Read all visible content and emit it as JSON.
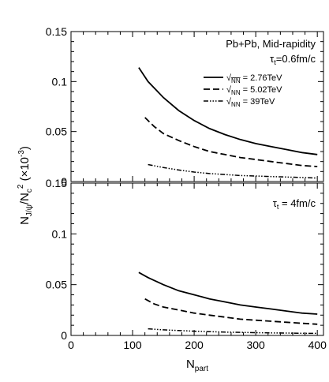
{
  "chart_data": [
    {
      "type": "line",
      "panel": "top",
      "annotation_lines": [
        "Pb+Pb, Mid-rapidity"
      ],
      "tau": {
        "symbol": "τ",
        "sub": "t",
        "value": "=0.6fm/c"
      },
      "xlim": [
        0,
        410
      ],
      "ylim": [
        0,
        0.15
      ],
      "yticks": [
        "0",
        "0.05",
        "0.1",
        "0.15"
      ],
      "legend_position": "top-right",
      "grid": false,
      "series": [
        {
          "name": "√sNN = 2.76TeV",
          "legend_prefix": "√",
          "legend_sub": "NN",
          "legend_value": " = 2.76TeV",
          "dash": "solid",
          "x": [
            110,
            125,
            150,
            175,
            200,
            225,
            250,
            275,
            300,
            325,
            350,
            375,
            400
          ],
          "y": [
            0.114,
            0.1,
            0.084,
            0.071,
            0.061,
            0.053,
            0.047,
            0.042,
            0.038,
            0.035,
            0.032,
            0.029,
            0.027
          ]
        },
        {
          "name": "√sNN = 5.02TeV",
          "legend_prefix": "√",
          "legend_sub": "NN",
          "legend_value": " = 5.02TeV",
          "dash": "dash",
          "x": [
            120,
            135,
            150,
            175,
            200,
            225,
            250,
            275,
            300,
            325,
            350,
            375,
            400
          ],
          "y": [
            0.064,
            0.055,
            0.048,
            0.041,
            0.035,
            0.03,
            0.027,
            0.024,
            0.022,
            0.02,
            0.018,
            0.016,
            0.015
          ]
        },
        {
          "name": "√sNN = 39TeV",
          "legend_prefix": "√",
          "legend_sub": "NN",
          "legend_value": " = 39TeV",
          "dash": "dashdot",
          "x": [
            125,
            150,
            175,
            200,
            225,
            250,
            275,
            300,
            325,
            350,
            375,
            400
          ],
          "y": [
            0.017,
            0.014,
            0.0115,
            0.0095,
            0.008,
            0.007,
            0.006,
            0.0055,
            0.005,
            0.0045,
            0.004,
            0.0035
          ]
        }
      ]
    },
    {
      "type": "line",
      "panel": "bottom",
      "tau": {
        "symbol": "τ",
        "sub": "t",
        "value": " = 4fm/c"
      },
      "xlim": [
        0,
        410
      ],
      "ylim": [
        0,
        0.15
      ],
      "yticks": [
        "0",
        "0.05",
        "0.1",
        "0.15"
      ],
      "xticks": [
        "0",
        "100",
        "200",
        "300",
        "400"
      ],
      "grid": false,
      "series": [
        {
          "name": "√sNN = 2.76TeV",
          "dash": "solid",
          "x": [
            110,
            125,
            150,
            175,
            200,
            225,
            250,
            275,
            300,
            325,
            350,
            375,
            400
          ],
          "y": [
            0.062,
            0.057,
            0.05,
            0.044,
            0.04,
            0.036,
            0.033,
            0.03,
            0.028,
            0.026,
            0.024,
            0.022,
            0.021
          ]
        },
        {
          "name": "√sNN = 5.02TeV",
          "dash": "dash",
          "x": [
            120,
            135,
            150,
            175,
            200,
            225,
            250,
            275,
            300,
            325,
            350,
            375,
            400
          ],
          "y": [
            0.036,
            0.031,
            0.028,
            0.025,
            0.022,
            0.02,
            0.018,
            0.016,
            0.015,
            0.014,
            0.013,
            0.012,
            0.011
          ]
        },
        {
          "name": "√sNN = 39TeV",
          "dash": "dashdot",
          "x": [
            125,
            150,
            175,
            200,
            225,
            250,
            275,
            300,
            325,
            350,
            375,
            400
          ],
          "y": [
            0.0065,
            0.0055,
            0.0048,
            0.0042,
            0.0037,
            0.0033,
            0.003,
            0.0027,
            0.0025,
            0.0023,
            0.0021,
            0.002
          ]
        }
      ]
    }
  ],
  "axes": {
    "ylabel": {
      "main": "N",
      "sub1": "J/ψ",
      "mid": "/N",
      "sub2": "c",
      "sup": "2",
      "suffix": " (×10",
      "suffix_sup": "-3",
      "close": ")"
    },
    "xlabel": {
      "main": "N",
      "sub": "part"
    }
  }
}
